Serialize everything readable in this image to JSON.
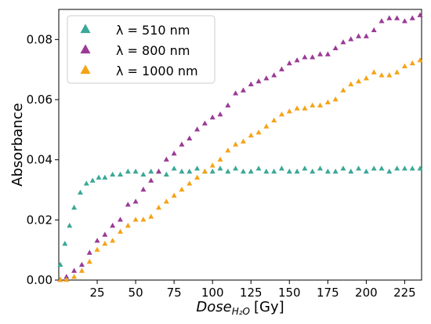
{
  "chart_data": {
    "type": "scatter",
    "xlabel": "Dose",
    "xlabel_subscript": "H₂O",
    "xlabel_unit": "[Gy]",
    "ylabel": "Absorbance",
    "xlim": [
      0,
      236
    ],
    "ylim": [
      0,
      0.09
    ],
    "xticks": [
      "25",
      "50",
      "75",
      "100",
      "125",
      "150",
      "175",
      "200",
      "225"
    ],
    "yticks": [
      "0.00",
      "0.02",
      "0.04",
      "0.06",
      "0.08"
    ],
    "grid": false,
    "legend_position": "top-left",
    "marker": "triangle",
    "series": [
      {
        "name": "λ = 510 nm",
        "color": "#3aa897",
        "x": [
          1,
          4,
          7,
          10,
          14,
          18,
          22,
          26,
          30,
          35,
          40,
          45,
          50,
          55,
          60,
          65,
          70,
          75,
          80,
          85,
          90,
          95,
          100,
          105,
          110,
          115,
          120,
          125,
          130,
          135,
          140,
          145,
          150,
          155,
          160,
          165,
          170,
          175,
          180,
          185,
          190,
          195,
          200,
          205,
          210,
          215,
          220,
          225,
          230,
          235
        ],
        "y": [
          0.005,
          0.012,
          0.018,
          0.024,
          0.029,
          0.032,
          0.033,
          0.034,
          0.034,
          0.035,
          0.035,
          0.036,
          0.036,
          0.035,
          0.036,
          0.036,
          0.035,
          0.037,
          0.036,
          0.036,
          0.037,
          0.036,
          0.036,
          0.037,
          0.036,
          0.037,
          0.036,
          0.036,
          0.037,
          0.036,
          0.036,
          0.037,
          0.036,
          0.036,
          0.037,
          0.036,
          0.037,
          0.036,
          0.036,
          0.037,
          0.036,
          0.037,
          0.036,
          0.037,
          0.037,
          0.036,
          0.037,
          0.037,
          0.037,
          0.037
        ]
      },
      {
        "name": "λ = 800 nm",
        "color": "#9b3a96",
        "x": [
          1,
          5,
          10,
          15,
          20,
          25,
          30,
          35,
          40,
          45,
          50,
          55,
          60,
          65,
          70,
          75,
          80,
          85,
          90,
          95,
          100,
          105,
          110,
          115,
          120,
          125,
          130,
          135,
          140,
          145,
          150,
          155,
          160,
          165,
          170,
          175,
          180,
          185,
          190,
          195,
          200,
          205,
          210,
          215,
          220,
          225,
          230,
          235
        ],
        "y": [
          0.0,
          0.001,
          0.003,
          0.005,
          0.009,
          0.013,
          0.015,
          0.018,
          0.02,
          0.025,
          0.026,
          0.03,
          0.033,
          0.036,
          0.04,
          0.042,
          0.045,
          0.047,
          0.05,
          0.052,
          0.054,
          0.055,
          0.058,
          0.062,
          0.063,
          0.065,
          0.066,
          0.067,
          0.068,
          0.07,
          0.072,
          0.073,
          0.074,
          0.074,
          0.075,
          0.075,
          0.077,
          0.079,
          0.08,
          0.081,
          0.081,
          0.083,
          0.086,
          0.087,
          0.087,
          0.086,
          0.087,
          0.088
        ]
      },
      {
        "name": "λ = 1000 nm",
        "color": "#f5a316",
        "x": [
          1,
          5,
          10,
          15,
          20,
          25,
          30,
          35,
          40,
          45,
          50,
          55,
          60,
          65,
          70,
          75,
          80,
          85,
          90,
          95,
          100,
          105,
          110,
          115,
          120,
          125,
          130,
          135,
          140,
          145,
          150,
          155,
          160,
          165,
          170,
          175,
          180,
          185,
          190,
          195,
          200,
          205,
          210,
          215,
          220,
          225,
          230,
          235
        ],
        "y": [
          0.0,
          0.0,
          0.001,
          0.003,
          0.006,
          0.01,
          0.012,
          0.013,
          0.016,
          0.018,
          0.02,
          0.02,
          0.021,
          0.024,
          0.026,
          0.028,
          0.03,
          0.032,
          0.034,
          0.036,
          0.038,
          0.04,
          0.043,
          0.045,
          0.046,
          0.048,
          0.049,
          0.051,
          0.053,
          0.055,
          0.056,
          0.057,
          0.057,
          0.058,
          0.058,
          0.059,
          0.06,
          0.063,
          0.065,
          0.066,
          0.067,
          0.069,
          0.068,
          0.068,
          0.069,
          0.071,
          0.072,
          0.073
        ]
      }
    ]
  }
}
